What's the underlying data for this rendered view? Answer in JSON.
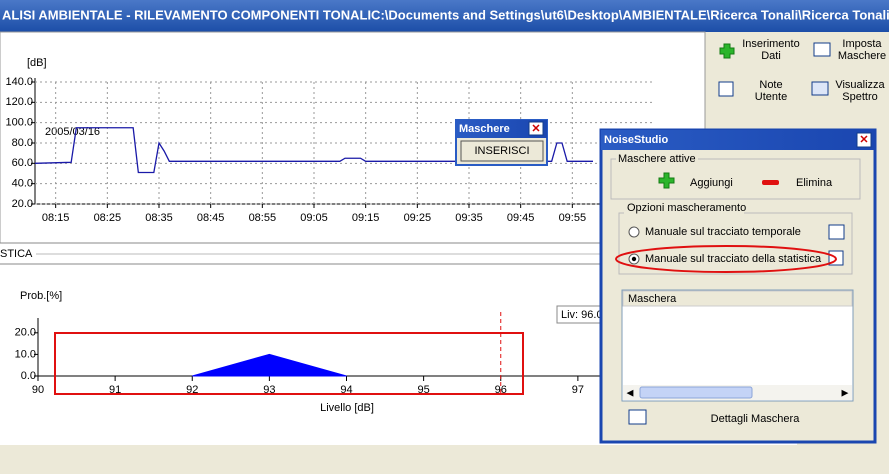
{
  "title_bar": "ALISI AMBIENTALE - RILEVAMENTO COMPONENTI TONALIC:\\Documents and Settings\\ut6\\Desktop\\AMBIENTALE\\Ricerca Tonali\\Ricerca Tonali.amt",
  "toolbar": [
    {
      "lines": [
        "Inserimento",
        "Dati"
      ]
    },
    {
      "lines": [
        "Imposta",
        "Maschere"
      ]
    },
    {
      "lines": [
        "Note",
        "Utente"
      ]
    },
    {
      "lines": [
        "Visualizza",
        "Spettro"
      ]
    }
  ],
  "time_chart": {
    "type": "line",
    "y_label": "[dB]",
    "date_label": "2005/03/16",
    "color": "#1a1aa8",
    "x": [
      "08:11",
      "08:18",
      "08:19",
      "08:30",
      "08:31",
      "08:34",
      "08:35",
      "08:36",
      "08:37",
      "08:56",
      "09:10",
      "09:11",
      "09:14",
      "09:15",
      "09:27",
      "09:51",
      "09:52",
      "09:53",
      "09:54",
      "09:59"
    ],
    "values": [
      60,
      61,
      95,
      95,
      51,
      51,
      80,
      72,
      62,
      62,
      62,
      65,
      65,
      62,
      62,
      62,
      80,
      80,
      62,
      62
    ],
    "xlim": [
      "08:11",
      "10:11"
    ],
    "xticks": [
      "08:15",
      "08:25",
      "08:35",
      "08:45",
      "08:55",
      "09:05",
      "09:15",
      "09:25",
      "09:35",
      "09:45",
      "09:55"
    ],
    "ylim": [
      20,
      140
    ],
    "yticks": [
      {
        "value": 20,
        "label": "20.0"
      },
      {
        "value": 40,
        "label": "40.0"
      },
      {
        "value": 60,
        "label": "60.0"
      },
      {
        "value": 80,
        "label": "80.0"
      },
      {
        "value": 100,
        "label": "100.0"
      },
      {
        "value": 120,
        "label": "120.0"
      },
      {
        "value": 140,
        "label": "140.0"
      }
    ],
    "grid": true
  },
  "section_label": "STICA",
  "stat_chart": {
    "type": "area",
    "y_label": "Prob.[%]",
    "x_label": "Livello [dB]",
    "color": "#0000ff",
    "x": [
      92,
      93,
      94
    ],
    "values": [
      0,
      10,
      0
    ],
    "xlim": [
      90,
      98
    ],
    "xticks": [
      90,
      91,
      92,
      93,
      94,
      95,
      96,
      97
    ],
    "ylim": [
      0,
      25
    ],
    "yticks": [
      {
        "value": 0,
        "label": "0.0"
      },
      {
        "value": 10,
        "label": "10.0"
      },
      {
        "value": 20,
        "label": "20.0"
      }
    ],
    "marker_x": 96,
    "marker_label": "Liv: 96.0"
  },
  "maschere_popup": {
    "title": "Maschere",
    "button": "INSERISCI"
  },
  "noise_dialog": {
    "title": "NoiseStudio",
    "group_active": "Maschere attive",
    "add": "Aggiungi",
    "remove": "Elimina",
    "group_options": "Opzioni mascheramento",
    "options": [
      {
        "label": "Manuale sul tracciato temporale",
        "checked": false
      },
      {
        "label": "Manuale sul tracciato della statistica",
        "checked": true
      }
    ],
    "list_header": "Maschera",
    "details": "Dettagli Maschera"
  }
}
